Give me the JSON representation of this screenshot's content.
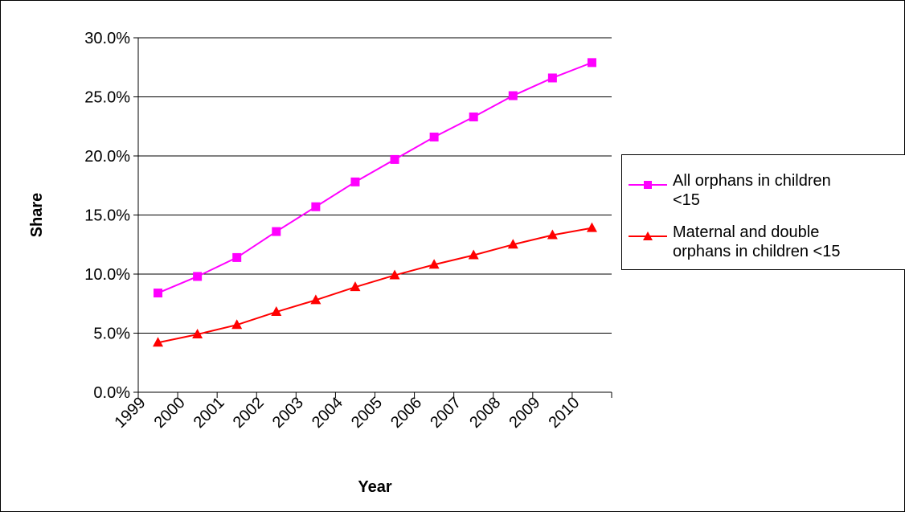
{
  "chart_data": {
    "type": "line",
    "title": "",
    "xlabel": "Year",
    "ylabel": "Share",
    "categories": [
      "1999",
      "2000",
      "2001",
      "2002",
      "2003",
      "2004",
      "2005",
      "2006",
      "2007",
      "2008",
      "2009",
      "2010"
    ],
    "ylim": [
      0,
      0.3
    ],
    "yticks": [
      "0.0%",
      "5.0%",
      "10.0%",
      "15.0%",
      "20.0%",
      "25.0%",
      "30.0%"
    ],
    "grid": "horizontal",
    "legend_position": "right",
    "series": [
      {
        "name": "All orphans in children\n<15",
        "color": "#ff00ff",
        "marker": "square",
        "values": [
          0.084,
          0.098,
          0.114,
          0.136,
          0.157,
          0.178,
          0.197,
          0.216,
          0.233,
          0.251,
          0.266,
          0.279
        ]
      },
      {
        "name": "Maternal and double\norphans in children <15",
        "color": "#ff0000",
        "marker": "triangle",
        "values": [
          0.042,
          0.049,
          0.057,
          0.068,
          0.078,
          0.089,
          0.099,
          0.108,
          0.116,
          0.125,
          0.133,
          0.139
        ]
      }
    ]
  }
}
